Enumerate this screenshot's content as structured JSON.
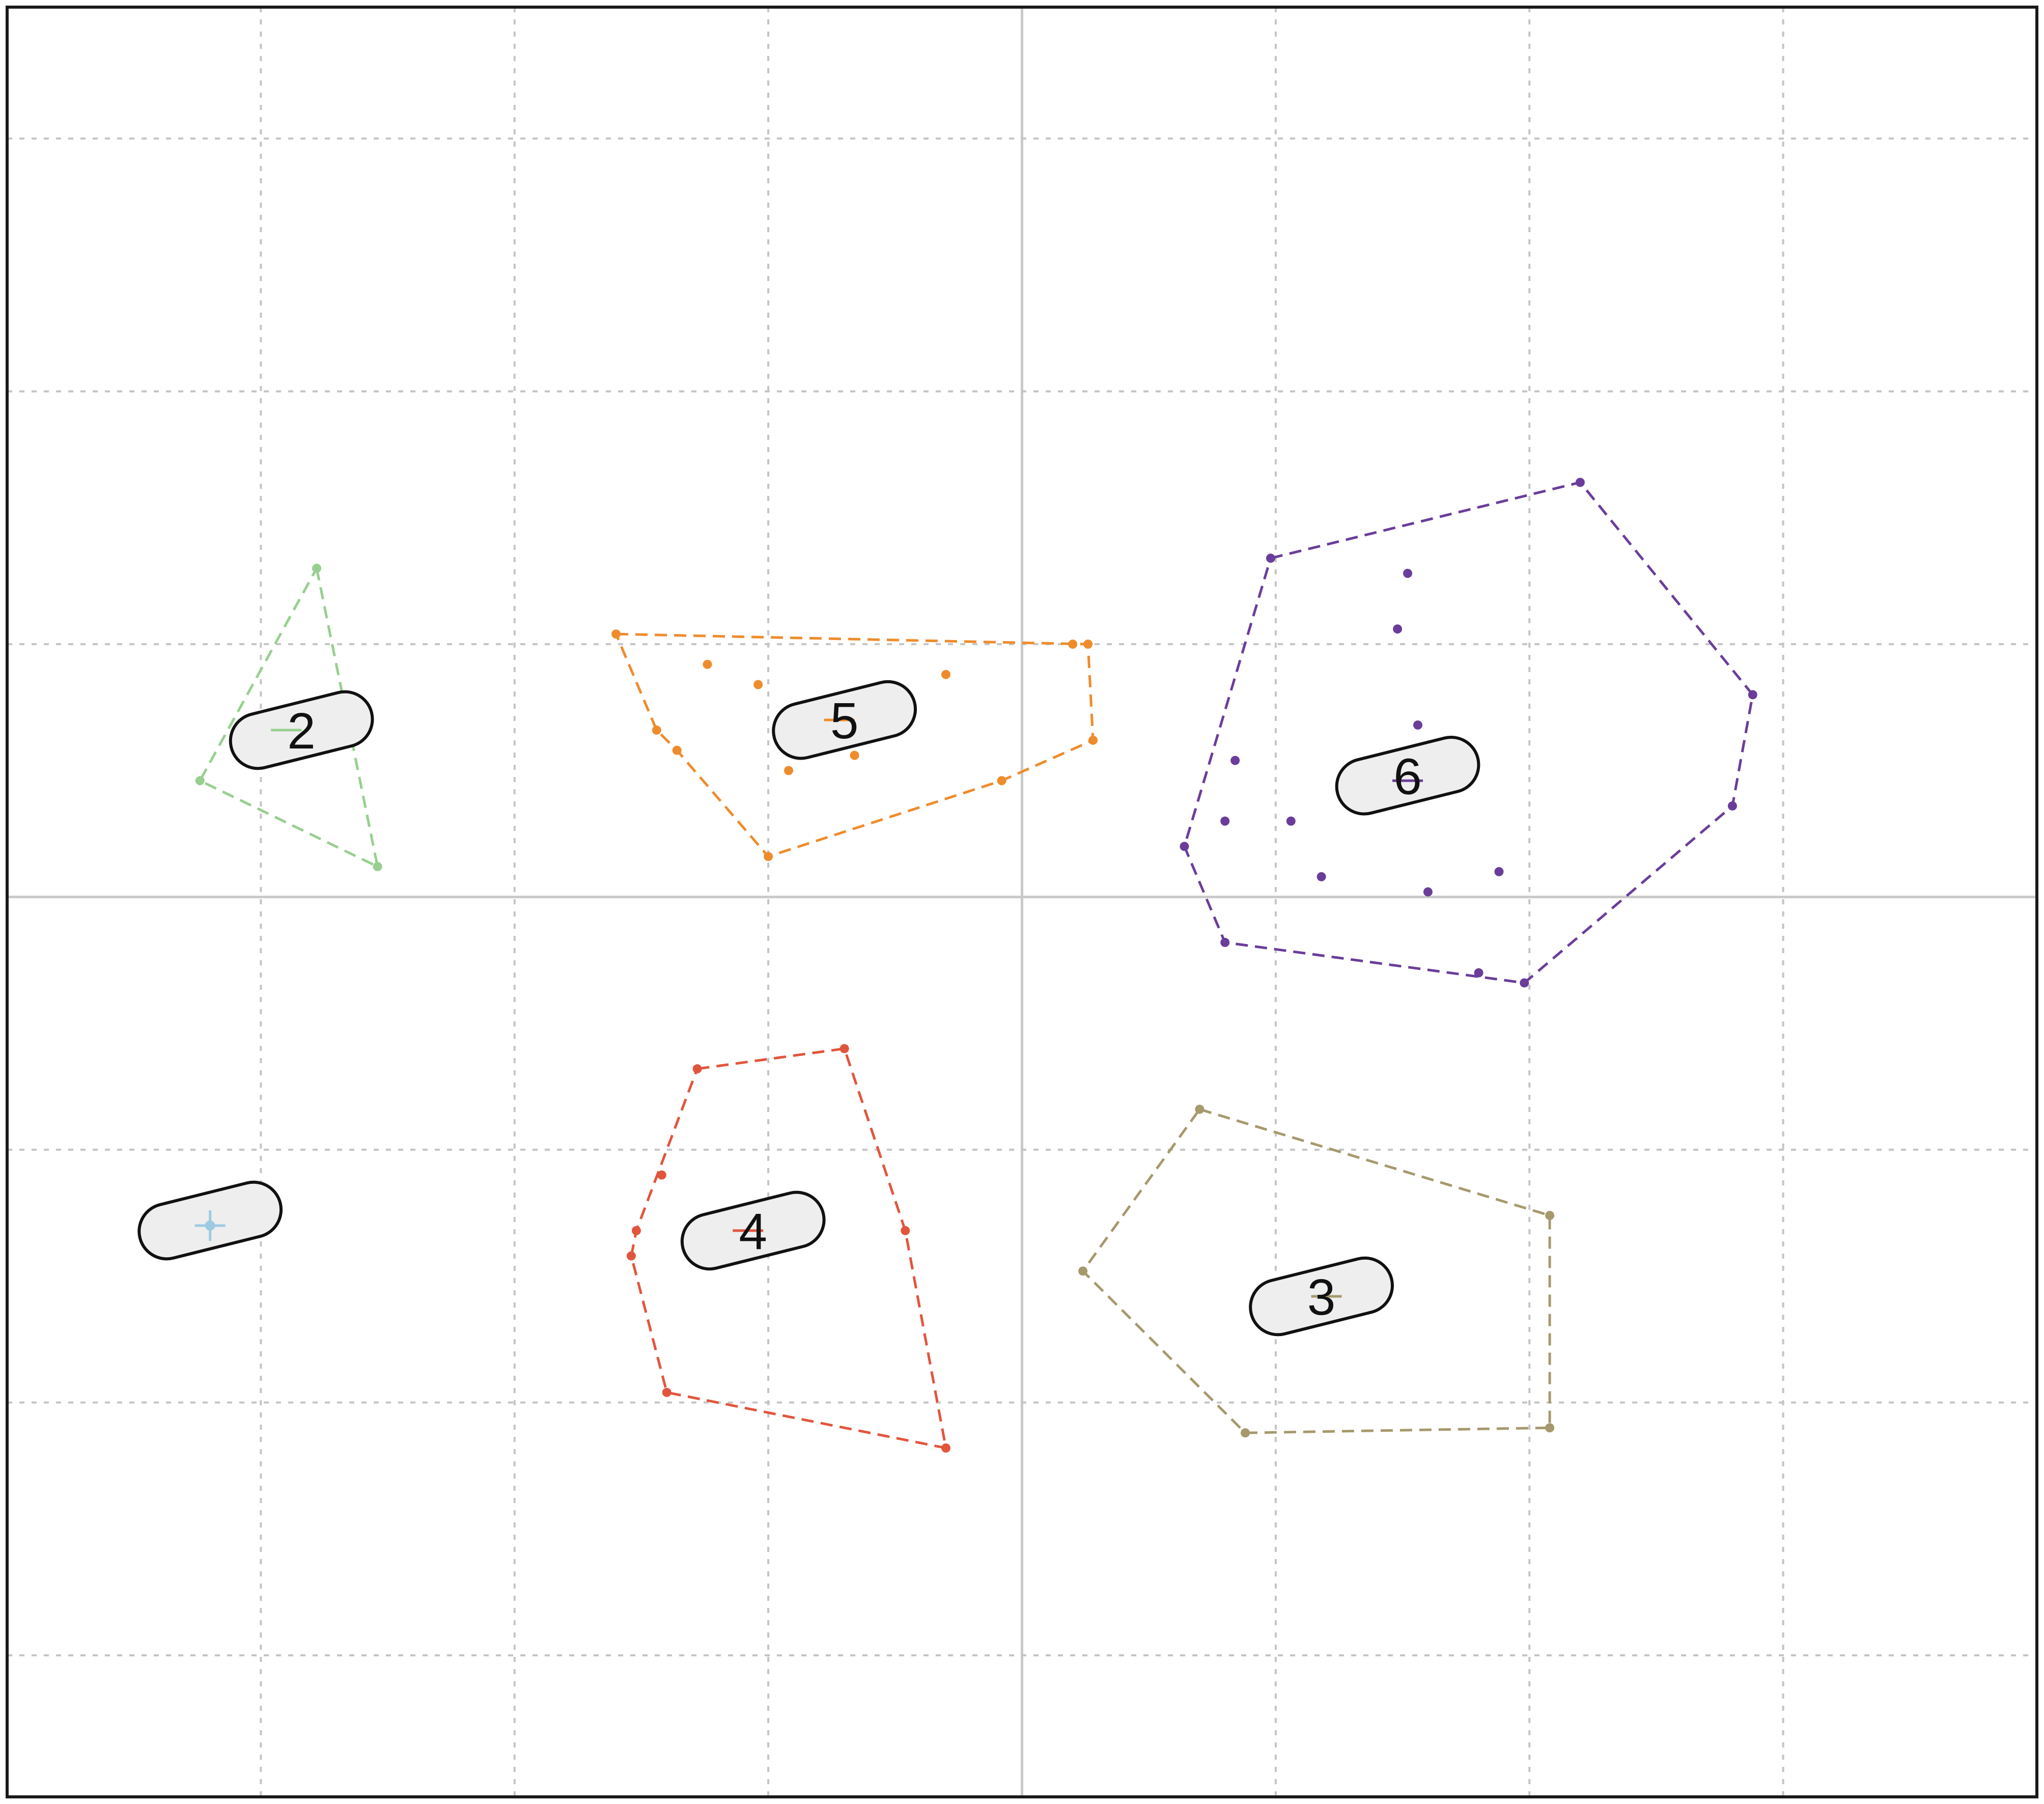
{
  "chart_data": {
    "type": "scatter",
    "title": "",
    "xlabel": "",
    "ylabel": "",
    "xlim": [
      -2,
      2
    ],
    "ylim": [
      -1.78,
      1.76
    ],
    "grid": true,
    "legend": "none",
    "clusters": [
      {
        "label": "",
        "color": "#9ecae1",
        "center": [
          -1.6,
          -0.65
        ],
        "label_box_center": [
          -1.6,
          -0.64
        ],
        "points": [],
        "hull": []
      },
      {
        "label": "2",
        "color": "#98cf90",
        "center": [
          -1.45,
          0.33
        ],
        "label_box_center": [
          -1.42,
          0.33
        ],
        "points": [
          [
            -1.39,
            0.65
          ],
          [
            -1.39,
            0.38
          ],
          [
            -1.62,
            0.23
          ],
          [
            -1.27,
            0.06
          ]
        ],
        "hull": [
          [
            -1.39,
            0.65
          ],
          [
            -1.27,
            0.06
          ],
          [
            -1.62,
            0.23
          ]
        ]
      },
      {
        "label": "3",
        "color": "#a6996c",
        "center": [
          0.6,
          -0.79
        ],
        "label_box_center": [
          0.59,
          -0.79
        ],
        "points": [
          [
            0.35,
            -0.42
          ],
          [
            0.12,
            -0.74
          ],
          [
            0.44,
            -1.06
          ],
          [
            1.04,
            -1.05
          ],
          [
            1.04,
            -0.63
          ]
        ],
        "hull": [
          [
            0.35,
            -0.42
          ],
          [
            1.04,
            -0.63
          ],
          [
            1.04,
            -1.05
          ],
          [
            0.44,
            -1.06
          ],
          [
            0.12,
            -0.74
          ]
        ]
      },
      {
        "label": "4",
        "color": "#e2553d",
        "center": [
          -0.54,
          -0.66
        ],
        "label_box_center": [
          -0.53,
          -0.66
        ],
        "points": [
          [
            -0.64,
            -0.34
          ],
          [
            -0.35,
            -0.3
          ],
          [
            -0.71,
            -0.55
          ],
          [
            -0.76,
            -0.66
          ],
          [
            -0.77,
            -0.71
          ],
          [
            -0.23,
            -0.66
          ],
          [
            -0.7,
            -0.98
          ],
          [
            -0.15,
            -1.09
          ]
        ],
        "hull": [
          [
            -0.64,
            -0.34
          ],
          [
            -0.35,
            -0.3
          ],
          [
            -0.23,
            -0.66
          ],
          [
            -0.15,
            -1.09
          ],
          [
            -0.7,
            -0.98
          ],
          [
            -0.77,
            -0.71
          ],
          [
            -0.76,
            -0.66
          ]
        ]
      },
      {
        "label": "5",
        "color": "#ee8c2c",
        "center": [
          -0.36,
          0.35
        ],
        "label_box_center": [
          -0.35,
          0.35
        ],
        "points": [
          [
            -0.8,
            0.52
          ],
          [
            -0.62,
            0.46
          ],
          [
            -0.52,
            0.42
          ],
          [
            -0.15,
            0.44
          ],
          [
            0.1,
            0.5
          ],
          [
            0.13,
            0.5
          ],
          [
            -0.72,
            0.33
          ],
          [
            -0.68,
            0.29
          ],
          [
            -0.42,
            0.3
          ],
          [
            -0.46,
            0.25
          ],
          [
            -0.33,
            0.28
          ],
          [
            -0.04,
            0.23
          ],
          [
            0.14,
            0.31
          ],
          [
            -0.5,
            0.08
          ]
        ],
        "hull": [
          [
            -0.8,
            0.52
          ],
          [
            0.13,
            0.5
          ],
          [
            0.14,
            0.31
          ],
          [
            -0.04,
            0.23
          ],
          [
            -0.5,
            0.08
          ],
          [
            -0.68,
            0.29
          ],
          [
            -0.72,
            0.33
          ]
        ]
      },
      {
        "label": "6",
        "color": "#6a3d9a",
        "center": [
          0.76,
          0.23
        ],
        "label_box_center": [
          0.76,
          0.24
        ],
        "points": [
          [
            1.1,
            0.82
          ],
          [
            0.49,
            0.67
          ],
          [
            0.76,
            0.64
          ],
          [
            0.74,
            0.53
          ],
          [
            1.44,
            0.4
          ],
          [
            0.78,
            0.34
          ],
          [
            0.42,
            0.27
          ],
          [
            1.4,
            0.18
          ],
          [
            0.4,
            0.15
          ],
          [
            0.53,
            0.15
          ],
          [
            0.32,
            0.1
          ],
          [
            0.59,
            0.04
          ],
          [
            0.8,
            0.01
          ],
          [
            0.94,
            0.05
          ],
          [
            0.4,
            -0.09
          ],
          [
            0.9,
            -0.15
          ],
          [
            0.99,
            -0.17
          ]
        ],
        "hull": [
          [
            0.49,
            0.67
          ],
          [
            1.1,
            0.82
          ],
          [
            1.44,
            0.4
          ],
          [
            1.4,
            0.18
          ],
          [
            0.99,
            -0.17
          ],
          [
            0.4,
            -0.09
          ],
          [
            0.32,
            0.1
          ]
        ]
      }
    ]
  }
}
